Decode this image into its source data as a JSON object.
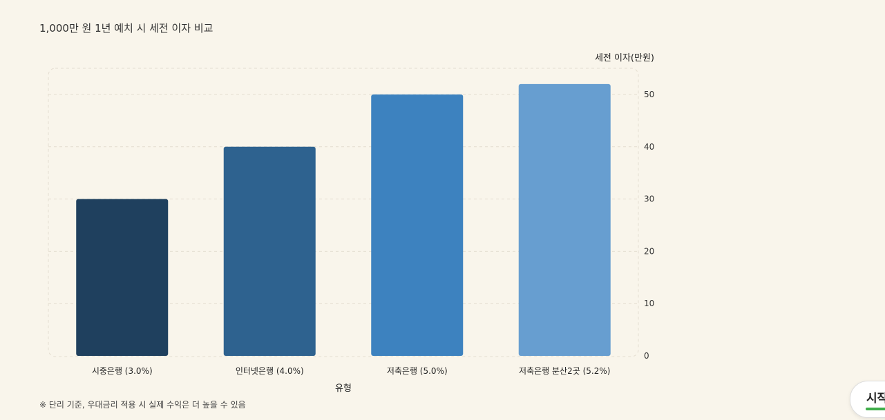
{
  "title": "1,000만 원 1년 예치 시 세전 이자 비교",
  "footnote": "※ 단리 기준, 우대금리 적용 시 실제 수익은 더 높을 수 있음",
  "start_button": {
    "label": "시작"
  },
  "colors": {
    "background": "#f9f5eb",
    "grid": "#e4ddd0",
    "bars": [
      "#1f405e",
      "#2e628f",
      "#3d82bf",
      "#679ed0"
    ]
  },
  "chart_data": {
    "type": "bar",
    "categories": [
      "시중은행 (3.0%)",
      "인터넷은행 (4.0%)",
      "저축은행 (5.0%)",
      "저축은행 분산2곳 (5.2%)"
    ],
    "values": [
      30,
      40,
      50,
      52
    ],
    "xlabel": "유형",
    "ylabel": "세전 이자(만원)",
    "ylim": [
      0,
      55
    ],
    "yticks": [
      0,
      10,
      20,
      30,
      40,
      50
    ],
    "y_axis_side": "right",
    "grid": true
  }
}
